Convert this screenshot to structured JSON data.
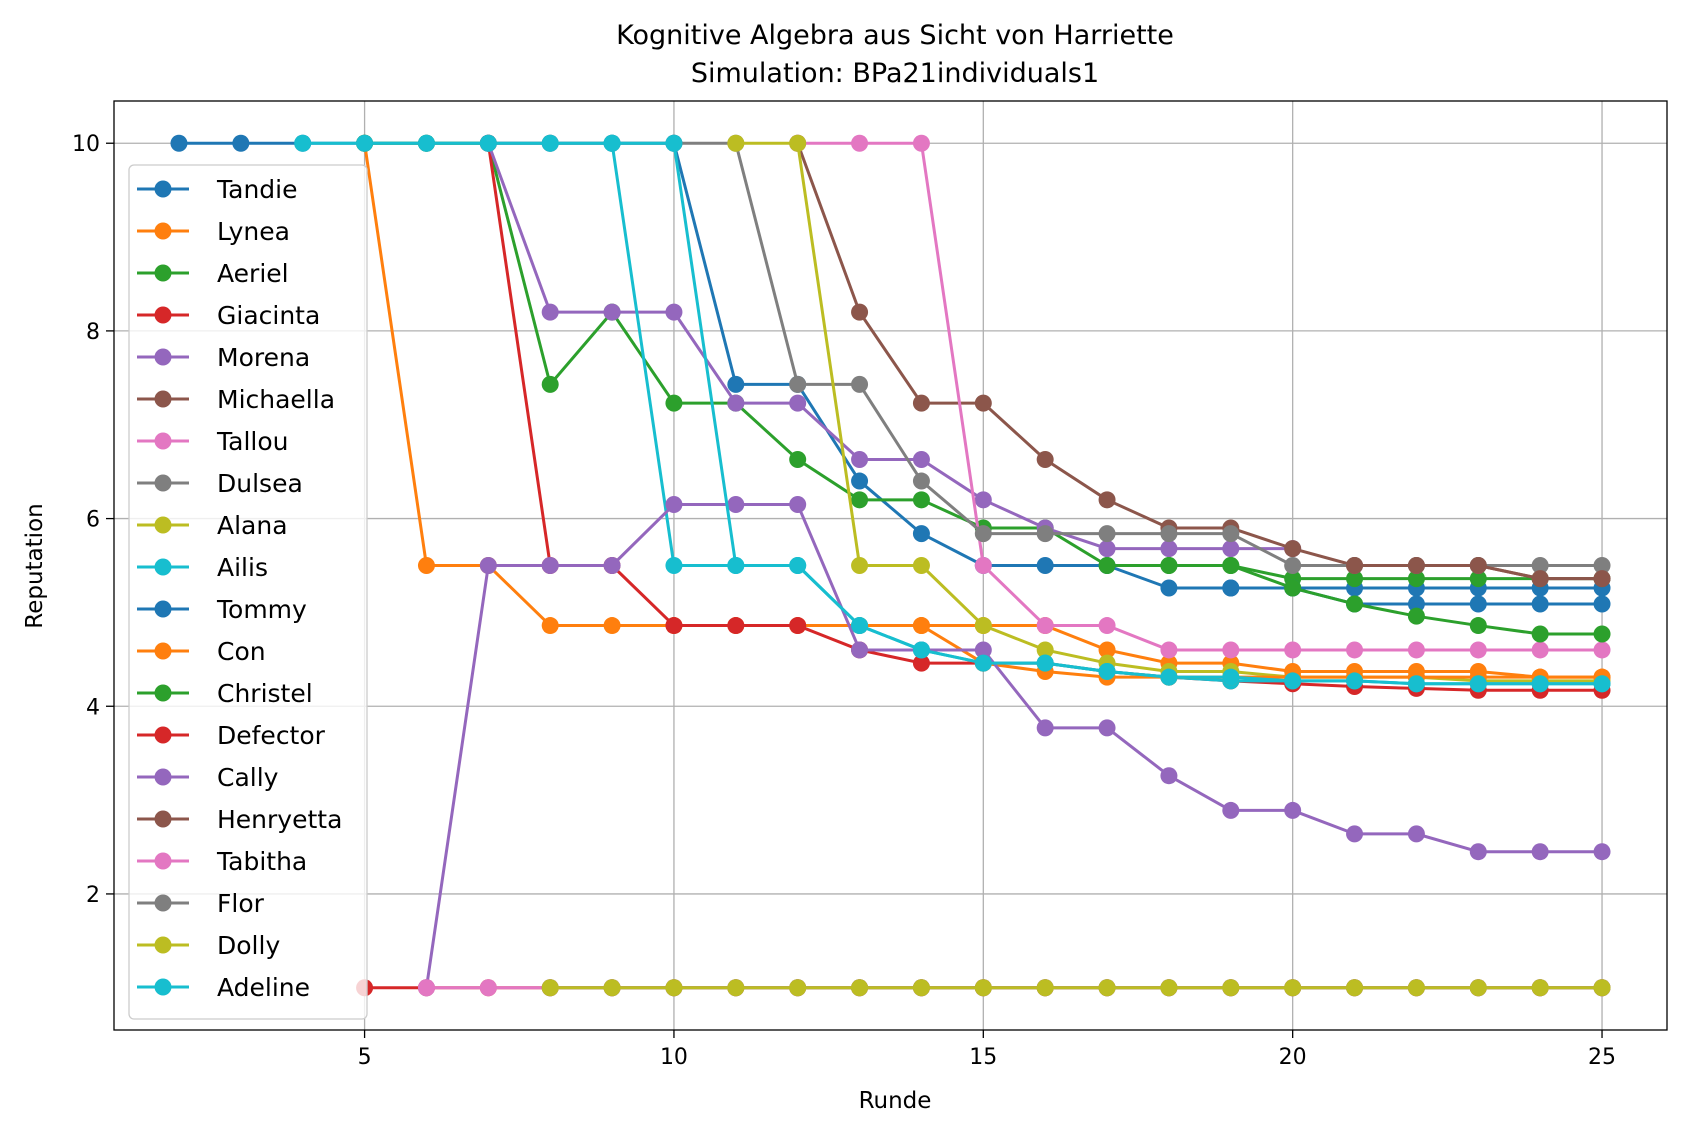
{
  "chart_data": {
    "type": "line",
    "title": "Kognitive Algebra aus Sicht von Harriette",
    "subtitle": "Simulation: BPa21individuals1",
    "xlabel": "Runde",
    "ylabel": "Reputation",
    "xlim": [
      0.95,
      26.05
    ],
    "ylim": [
      0.55,
      10.45
    ],
    "xticks": [
      5,
      10,
      15,
      20,
      25
    ],
    "yticks": [
      2,
      4,
      6,
      8,
      10
    ],
    "grid": true,
    "legend_position": "left",
    "series": [
      {
        "name": "Tandie",
        "color": "#1f77b4",
        "x": [
          2,
          3,
          4,
          5,
          6,
          7,
          8,
          9,
          10,
          11,
          12,
          13,
          14,
          15,
          16,
          17,
          18,
          19,
          20,
          21,
          22,
          23,
          24,
          25
        ],
        "y": [
          10,
          10,
          10,
          10,
          10,
          10,
          10,
          10,
          10,
          7.43,
          7.43,
          6.4,
          5.84,
          5.5,
          5.5,
          5.5,
          5.26,
          5.26,
          5.26,
          5.26,
          5.26,
          5.26,
          5.26,
          5.26
        ]
      },
      {
        "name": "Lynea",
        "color": "#ff7f0e",
        "x": [
          5,
          6,
          7,
          8,
          9,
          10,
          11,
          12,
          13,
          14,
          15,
          16,
          17,
          18,
          19,
          20,
          21,
          22,
          23,
          24,
          25
        ],
        "y": [
          10,
          5.5,
          5.5,
          4.86,
          4.86,
          4.86,
          4.86,
          4.86,
          4.86,
          4.86,
          4.86,
          4.86,
          4.6,
          4.46,
          4.46,
          4.37,
          4.37,
          4.37,
          4.37,
          4.31,
          4.31
        ]
      },
      {
        "name": "Aeriel",
        "color": "#2ca02c",
        "x": [
          5,
          6,
          7,
          8,
          9,
          10,
          11,
          12,
          13,
          14,
          15,
          16,
          17,
          18,
          19,
          20,
          21,
          22,
          23,
          24,
          25
        ],
        "y": [
          10,
          10,
          10,
          7.43,
          8.2,
          7.23,
          7.23,
          6.63,
          6.2,
          6.2,
          5.9,
          5.9,
          5.5,
          5.5,
          5.5,
          5.36,
          5.36,
          5.36,
          5.36,
          5.36,
          5.36
        ]
      },
      {
        "name": "Giacinta",
        "color": "#d62728",
        "x": [
          7,
          8,
          9,
          10,
          11,
          12,
          13,
          14,
          15,
          16,
          17,
          18,
          19,
          20,
          21,
          22,
          23,
          24,
          25
        ],
        "y": [
          10,
          5.5,
          5.5,
          4.86,
          4.86,
          4.86,
          4.6,
          4.46,
          4.46,
          4.46,
          4.37,
          4.31,
          4.27,
          4.24,
          4.21,
          4.19,
          4.17,
          4.17,
          4.17
        ]
      },
      {
        "name": "Morena",
        "color": "#9467bd",
        "x": [
          7,
          8,
          9,
          10,
          11,
          12,
          13,
          14,
          15,
          16,
          17,
          18,
          19,
          20
        ],
        "y": [
          10,
          8.2,
          8.2,
          8.2,
          7.23,
          7.23,
          6.63,
          6.63,
          6.2,
          5.9,
          5.68,
          5.68,
          5.68,
          5.68
        ]
      },
      {
        "name": "Michaella",
        "color": "#8c564b",
        "x": [
          12,
          13,
          14,
          15,
          16,
          17,
          18,
          19,
          20,
          21,
          22,
          23,
          24,
          25
        ],
        "y": [
          10,
          8.2,
          7.23,
          7.23,
          6.63,
          6.2,
          5.9,
          5.9,
          5.68,
          5.5,
          5.5,
          5.5,
          5.36,
          5.36
        ]
      },
      {
        "name": "Tallou",
        "color": "#e377c2",
        "x": [
          12,
          13,
          14,
          15,
          16,
          17,
          18,
          19,
          20,
          21,
          22,
          23,
          24,
          25
        ],
        "y": [
          10,
          10,
          10,
          5.5,
          4.86,
          4.86,
          4.6,
          4.6,
          4.6,
          4.6,
          4.6,
          4.6,
          4.6,
          4.6
        ]
      },
      {
        "name": "Dulsea",
        "color": "#7f7f7f",
        "x": [
          7,
          8,
          9,
          10,
          11,
          12,
          13,
          14,
          15,
          16,
          17,
          18,
          19,
          20,
          21,
          22,
          23,
          24,
          25
        ],
        "y": [
          10,
          10,
          10,
          10,
          10,
          7.43,
          7.43,
          6.4,
          5.84,
          5.84,
          5.84,
          5.84,
          5.84,
          5.5,
          5.5,
          5.5,
          5.5,
          5.5,
          5.5
        ]
      },
      {
        "name": "Alana",
        "color": "#bcbd22",
        "x": [
          11,
          12,
          13,
          14,
          15,
          16,
          17,
          18,
          19,
          20,
          21,
          22,
          23,
          24,
          25
        ],
        "y": [
          10,
          10,
          5.5,
          5.5,
          4.86,
          4.6,
          4.46,
          4.37,
          4.37,
          4.31,
          4.31,
          4.31,
          4.27,
          4.27,
          4.27
        ]
      },
      {
        "name": "Ailis",
        "color": "#17becf",
        "x": [
          9,
          10,
          11,
          12,
          13,
          14,
          15,
          16,
          17,
          18,
          19,
          20,
          21,
          22,
          23,
          24,
          25
        ],
        "y": [
          10,
          5.5,
          5.5,
          5.5,
          4.86,
          4.6,
          4.46,
          4.46,
          4.37,
          4.31,
          4.27,
          4.27,
          4.27,
          4.24,
          4.24,
          4.24,
          4.24
        ]
      },
      {
        "name": "Tommy",
        "color": "#1f77b4",
        "x": [
          19,
          20,
          21,
          22,
          23,
          24,
          25
        ],
        "y": [
          5.26,
          5.26,
          5.09,
          5.09,
          5.09,
          5.09,
          5.09
        ]
      },
      {
        "name": "Con",
        "color": "#ff7f0e",
        "x": [
          14,
          15,
          16,
          17,
          18,
          19,
          20,
          21,
          22,
          23,
          24,
          25
        ],
        "y": [
          4.86,
          4.46,
          4.37,
          4.31,
          4.31,
          4.31,
          4.31,
          4.31,
          4.31,
          4.31,
          4.31,
          4.31
        ]
      },
      {
        "name": "Christel",
        "color": "#2ca02c",
        "x": [
          18,
          19,
          20,
          21,
          22,
          23,
          24,
          25
        ],
        "y": [
          5.5,
          5.5,
          5.26,
          5.09,
          4.96,
          4.86,
          4.77,
          4.77
        ]
      },
      {
        "name": "Defector",
        "color": "#d62728",
        "x": [
          5,
          6,
          7,
          8,
          9,
          10,
          11,
          12,
          13,
          14,
          15,
          16,
          17,
          18,
          19,
          20,
          21,
          22,
          23,
          24,
          25
        ],
        "y": [
          1,
          1,
          1,
          1,
          1,
          1,
          1,
          1,
          1,
          1,
          1,
          1,
          1,
          1,
          1,
          1,
          1,
          1,
          1,
          1,
          1
        ]
      },
      {
        "name": "Cally",
        "color": "#9467bd",
        "x": [
          6,
          7,
          8,
          9,
          10,
          11,
          12,
          13,
          14,
          15,
          16,
          17,
          18,
          19,
          20,
          21,
          22,
          23,
          24,
          25
        ],
        "y": [
          1,
          5.5,
          5.5,
          5.5,
          6.15,
          6.15,
          6.15,
          4.6,
          4.6,
          4.6,
          3.77,
          3.77,
          3.26,
          2.89,
          2.89,
          2.64,
          2.64,
          2.45,
          2.45,
          2.45
        ]
      },
      {
        "name": "Henryetta",
        "color": "#8c564b",
        "x": [
          21,
          22,
          23,
          24,
          25
        ],
        "y": [
          5.5,
          5.5,
          5.5,
          5.36,
          5.36
        ]
      },
      {
        "name": "Tabitha",
        "color": "#e377c2",
        "x": [
          6,
          7,
          8,
          9,
          10,
          11,
          12,
          13,
          14,
          15,
          16,
          17,
          18,
          19,
          20,
          21,
          22,
          23,
          24,
          25
        ],
        "y": [
          1,
          1,
          1,
          1,
          1,
          1,
          1,
          1,
          1,
          1,
          1,
          1,
          1,
          1,
          1,
          1,
          1,
          1,
          1,
          1
        ]
      },
      {
        "name": "Flor",
        "color": "#7f7f7f",
        "x": [
          8,
          9,
          10,
          11,
          12,
          13,
          14,
          15,
          16,
          17,
          18,
          19,
          20,
          21,
          22,
          23,
          24,
          25
        ],
        "y": [
          1,
          1,
          1,
          1,
          1,
          1,
          1,
          1,
          1,
          1,
          1,
          1,
          1,
          1,
          1,
          1,
          1,
          1
        ]
      },
      {
        "name": "Dolly",
        "color": "#bcbd22",
        "x": [
          8,
          9,
          10,
          11,
          12,
          13,
          14,
          15,
          16,
          17,
          18,
          19,
          20,
          21,
          22,
          23,
          24,
          25
        ],
        "y": [
          1,
          1,
          1,
          1,
          1,
          1,
          1,
          1,
          1,
          1,
          1,
          1,
          1,
          1,
          1,
          1,
          1,
          1
        ]
      },
      {
        "name": "Adeline",
        "color": "#17becf",
        "x": [
          4,
          5,
          6,
          7,
          8,
          9,
          10,
          11,
          12,
          13,
          14,
          15,
          16,
          17,
          18,
          19,
          20,
          21,
          22,
          23,
          24,
          25
        ],
        "y": [
          10,
          10,
          10,
          10,
          10,
          10,
          10,
          5.5,
          5.5,
          4.86,
          4.6,
          4.46,
          4.46,
          4.37,
          4.31,
          4.31,
          4.27,
          4.27,
          4.24,
          4.24,
          4.24,
          4.24
        ]
      }
    ]
  }
}
